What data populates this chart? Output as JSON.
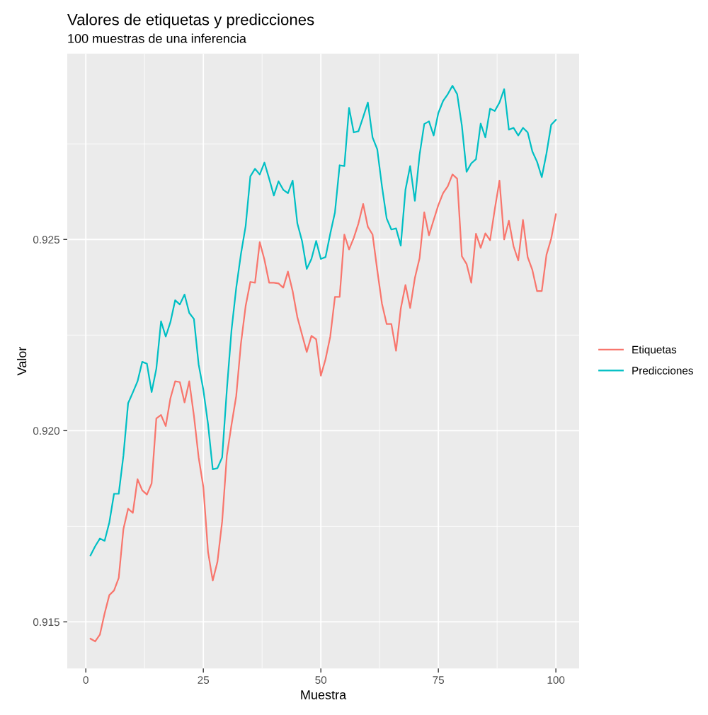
{
  "chart_data": {
    "type": "line",
    "title": "Valores de etiquetas y predicciones",
    "subtitle": "100 muestras de una inferencia",
    "xlabel": "Muestra",
    "ylabel": "Valor",
    "x": [
      1,
      2,
      3,
      4,
      5,
      6,
      7,
      8,
      9,
      10,
      11,
      12,
      13,
      14,
      15,
      16,
      17,
      18,
      19,
      20,
      21,
      22,
      23,
      24,
      25,
      26,
      27,
      28,
      29,
      30,
      31,
      32,
      33,
      34,
      35,
      36,
      37,
      38,
      39,
      40,
      41,
      42,
      43,
      44,
      45,
      46,
      47,
      48,
      49,
      50,
      51,
      52,
      53,
      54,
      55,
      56,
      57,
      58,
      59,
      60,
      61,
      62,
      63,
      64,
      65,
      66,
      67,
      68,
      69,
      70,
      71,
      72,
      73,
      74,
      75,
      76,
      77,
      78,
      79,
      80,
      81,
      82,
      83,
      84,
      85,
      86,
      87,
      88,
      89,
      90,
      91,
      92,
      93,
      94,
      95,
      96,
      97,
      98,
      99,
      100
    ],
    "series": [
      {
        "name": "Etiquetas",
        "color": "#f8766d",
        "values": [
          0.91456,
          0.91449,
          0.91467,
          0.91522,
          0.9157,
          0.91582,
          0.91615,
          0.91743,
          0.91796,
          0.91785,
          0.91873,
          0.91844,
          0.91833,
          0.91862,
          0.92032,
          0.92041,
          0.92012,
          0.92085,
          0.92129,
          0.92127,
          0.92074,
          0.92129,
          0.92039,
          0.9193,
          0.91853,
          0.91683,
          0.91608,
          0.91657,
          0.91762,
          0.91935,
          0.92016,
          0.92091,
          0.92228,
          0.92326,
          0.92389,
          0.92387,
          0.92493,
          0.92447,
          0.92387,
          0.92387,
          0.92385,
          0.92374,
          0.92416,
          0.92365,
          0.92297,
          0.92251,
          0.92206,
          0.92248,
          0.92239,
          0.92144,
          0.92187,
          0.92246,
          0.9235,
          0.9235,
          0.92513,
          0.92474,
          0.92504,
          0.92542,
          0.92593,
          0.92533,
          0.92513,
          0.9242,
          0.92332,
          0.92279,
          0.92279,
          0.92209,
          0.92319,
          0.92381,
          0.92321,
          0.92399,
          0.92451,
          0.92571,
          0.92511,
          0.92551,
          0.9259,
          0.92621,
          0.92639,
          0.9267,
          0.92659,
          0.92456,
          0.92436,
          0.92387,
          0.92515,
          0.92478,
          0.92516,
          0.92498,
          0.92579,
          0.92654,
          0.925,
          0.92549,
          0.92482,
          0.92445,
          0.92551,
          0.92454,
          0.9242,
          0.92365,
          0.92365,
          0.9246,
          0.92502,
          0.92566
        ]
      },
      {
        "name": "Predicciones",
        "color": "#00bfc4",
        "values": [
          0.91674,
          0.91698,
          0.91718,
          0.91712,
          0.9176,
          0.91835,
          0.91835,
          0.91935,
          0.92072,
          0.921,
          0.92129,
          0.9218,
          0.92175,
          0.92101,
          0.92162,
          0.92286,
          0.92246,
          0.92284,
          0.92341,
          0.9233,
          0.92356,
          0.92308,
          0.92292,
          0.92173,
          0.92107,
          0.92017,
          0.91899,
          0.91902,
          0.9193,
          0.92107,
          0.92264,
          0.92374,
          0.92462,
          0.92535,
          0.92665,
          0.92685,
          0.9267,
          0.92701,
          0.92659,
          0.92615,
          0.92652,
          0.9263,
          0.92621,
          0.92654,
          0.92542,
          0.92496,
          0.92423,
          0.92449,
          0.92496,
          0.92449,
          0.92454,
          0.92515,
          0.92571,
          0.92694,
          0.92692,
          0.92844,
          0.9278,
          0.92783,
          0.9282,
          0.92858,
          0.92767,
          0.92736,
          0.92639,
          0.92555,
          0.92526,
          0.92529,
          0.92484,
          0.9263,
          0.92692,
          0.92601,
          0.92721,
          0.92802,
          0.92809,
          0.92772,
          0.92831,
          0.92862,
          0.9288,
          0.92902,
          0.9288,
          0.92798,
          0.92677,
          0.92699,
          0.9271,
          0.92803,
          0.92767,
          0.92842,
          0.92836,
          0.92858,
          0.92893,
          0.92787,
          0.92792,
          0.92772,
          0.92792,
          0.9278,
          0.9273,
          0.92703,
          0.92663,
          0.92725,
          0.928,
          0.92813
        ]
      }
    ],
    "xlim": [
      -3.95,
      104.95
    ],
    "xticks": [
      0,
      25,
      50,
      75,
      100
    ],
    "ylim": [
      0.91378,
      0.92986
    ],
    "yticks": [
      0.915,
      {
        "value": 0.92,
        "label": "0.920"
      },
      0.925
    ],
    "grid": true,
    "legend": "right",
    "line_style": "solid",
    "marker": "none"
  }
}
